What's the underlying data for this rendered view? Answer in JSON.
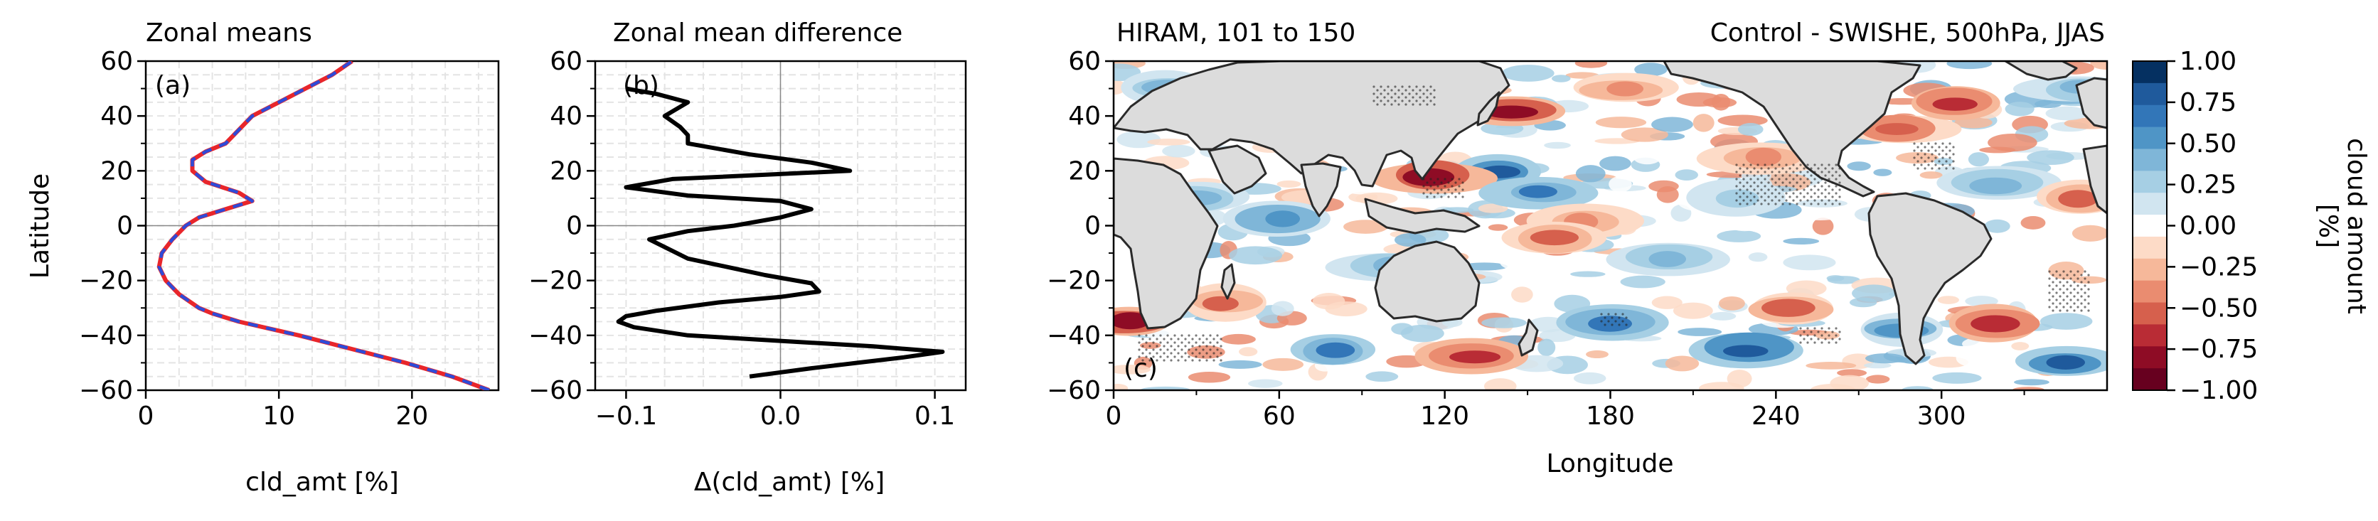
{
  "chart_data": [
    {
      "type": "line",
      "title": "Zonal means",
      "panel_label": "(a)",
      "xlabel": "cld_amt [%]",
      "ylabel": "Latitude",
      "xlim": [
        0,
        26.5
      ],
      "ylim": [
        -60,
        60
      ],
      "xticks": [
        0,
        10,
        20
      ],
      "xtick_labels": [
        "0",
        "10",
        "20"
      ],
      "yticks": [
        -60,
        -40,
        -20,
        0,
        20,
        40,
        60
      ],
      "ytick_labels": [
        "−60",
        "−40",
        "−20",
        "0",
        "20",
        "40",
        "60"
      ],
      "grid": true,
      "series": [
        {
          "color": "#e8262b",
          "dash": "solid",
          "y": [
            -60,
            -55,
            -50,
            -45,
            -40,
            -35,
            -32,
            -30,
            -25,
            -20,
            -15,
            -10,
            -5,
            0,
            3,
            6,
            9,
            12,
            16,
            20,
            24,
            27,
            30,
            35,
            40,
            45,
            50,
            55,
            60
          ],
          "x": [
            25.8,
            23.0,
            19.5,
            15.5,
            11.5,
            7.0,
            5.0,
            4.0,
            2.5,
            1.5,
            1.0,
            1.2,
            2.0,
            3.0,
            4.0,
            6.0,
            8.0,
            7.0,
            4.5,
            3.5,
            3.5,
            4.5,
            6.0,
            7.0,
            8.0,
            10.0,
            12.0,
            14.0,
            15.5
          ]
        },
        {
          "color": "#2e4bd8",
          "dash": "dashed",
          "y": [
            -60,
            -55,
            -50,
            -45,
            -40,
            -35,
            -32,
            -30,
            -25,
            -20,
            -15,
            -10,
            -5,
            0,
            3,
            6,
            9,
            12,
            16,
            20,
            24,
            27,
            30,
            35,
            40,
            45,
            50,
            55,
            60
          ],
          "x": [
            25.8,
            23.0,
            19.5,
            15.5,
            11.5,
            7.0,
            5.0,
            4.0,
            2.5,
            1.5,
            1.0,
            1.2,
            2.0,
            3.0,
            4.0,
            6.0,
            8.0,
            7.0,
            4.5,
            3.5,
            3.5,
            4.5,
            6.0,
            7.0,
            8.0,
            10.0,
            12.0,
            14.0,
            15.5
          ]
        }
      ]
    },
    {
      "type": "line",
      "title": "Zonal mean difference",
      "panel_label": "(b)",
      "xlabel": "Δ(cld_amt) [%]",
      "xlim": [
        -0.12,
        0.12
      ],
      "ylim": [
        -60,
        60
      ],
      "xticks": [
        -0.1,
        0,
        0.1
      ],
      "xtick_labels": [
        "−0.1",
        "0.0",
        "0.1"
      ],
      "yticks": [
        -60,
        -40,
        -20,
        0,
        20,
        40,
        60
      ],
      "ytick_labels": [
        "−60",
        "−40",
        "−20",
        "0",
        "20",
        "40",
        "60"
      ],
      "grid": true,
      "series": [
        {
          "color": "#000000",
          "dash": "solid",
          "y": [
            -55,
            -52,
            -50,
            -48,
            -46,
            -44,
            -42,
            -40,
            -37,
            -35,
            -33,
            -31,
            -28,
            -26,
            -24,
            -21,
            -18,
            -12,
            -5,
            -2,
            0,
            3,
            6,
            9,
            11,
            14,
            17,
            20,
            23,
            26,
            30,
            33,
            36,
            40,
            45,
            48,
            50
          ],
          "x": [
            -0.02,
            0.02,
            0.05,
            0.08,
            0.105,
            0.06,
            0.0,
            -0.06,
            -0.095,
            -0.105,
            -0.1,
            -0.08,
            -0.04,
            0.0,
            0.025,
            0.02,
            -0.01,
            -0.06,
            -0.085,
            -0.06,
            -0.03,
            0.0,
            0.02,
            0.0,
            -0.06,
            -0.1,
            -0.07,
            0.045,
            0.02,
            -0.02,
            -0.06,
            -0.06,
            -0.065,
            -0.075,
            -0.06,
            -0.08,
            -0.1
          ]
        }
      ]
    },
    {
      "type": "heatmap",
      "title": "HIRAM, 101 to 150",
      "subtitle": "Control - SWISHE, 500hPa, JJAS",
      "panel_label": "(c)",
      "xlabel": "Longitude",
      "xlim": [
        0,
        360
      ],
      "ylim": [
        -60,
        60
      ],
      "xticks": [
        0,
        60,
        120,
        180,
        240,
        300
      ],
      "xtick_labels": [
        "0",
        "60",
        "120",
        "180",
        "240",
        "300"
      ],
      "yticks": [
        -60,
        -40,
        -20,
        0,
        20,
        40,
        60
      ],
      "ytick_labels": [
        "−60",
        "−40",
        "−20",
        "0",
        "20",
        "40",
        "60"
      ],
      "colormap": "RdBu",
      "colorbar": {
        "label": "cloud amount\n[%]",
        "range": [
          -1.0,
          1.0
        ],
        "ticks": [
          1.0,
          0.75,
          0.5,
          0.25,
          0.0,
          -0.25,
          -0.5,
          -0.75,
          -1.0
        ],
        "tick_labels": [
          "1.00",
          "0.75",
          "0.50",
          "0.25",
          "0.00",
          "−0.25",
          "−0.50",
          "−0.75",
          "−1.00"
        ],
        "level_colors": [
          "#053061",
          "#1f5a9c",
          "#3276b8",
          "#4f95c6",
          "#7fb6d8",
          "#a6cfe4",
          "#d1e5f0",
          "#ffffff",
          "#fddbc7",
          "#f6b89a",
          "#ea8c70",
          "#d6604d",
          "#b92c35",
          "#8e0c25",
          "#67001f"
        ]
      },
      "field_patches": [
        {
          "lon": 140,
          "lat": 20,
          "value": 0.9
        },
        {
          "lon": 115,
          "lat": 18,
          "value": -0.9
        },
        {
          "lon": 155,
          "lat": 12,
          "value": 0.7
        },
        {
          "lon": 60,
          "lat": 2,
          "value": 0.6
        },
        {
          "lon": 30,
          "lat": 10,
          "value": 0.5
        },
        {
          "lon": 85,
          "lat": 35,
          "value": -0.7
        },
        {
          "lon": 145,
          "lat": 42,
          "value": -0.8
        },
        {
          "lon": 115,
          "lat": 45,
          "value": 0.5
        },
        {
          "lon": 285,
          "lat": 35,
          "value": -0.6
        },
        {
          "lon": 305,
          "lat": 45,
          "value": -0.7
        },
        {
          "lon": 235,
          "lat": 25,
          "value": -0.4
        },
        {
          "lon": 255,
          "lat": 45,
          "value": -0.3
        },
        {
          "lon": 5,
          "lat": -35,
          "value": -0.9
        },
        {
          "lon": 40,
          "lat": -28,
          "value": -0.5
        },
        {
          "lon": 80,
          "lat": -45,
          "value": 0.7
        },
        {
          "lon": 100,
          "lat": -15,
          "value": 0.5
        },
        {
          "lon": 130,
          "lat": -48,
          "value": -0.7
        },
        {
          "lon": 180,
          "lat": -35,
          "value": 0.7
        },
        {
          "lon": 230,
          "lat": -45,
          "value": 0.9
        },
        {
          "lon": 245,
          "lat": -30,
          "value": -0.5
        },
        {
          "lon": 285,
          "lat": -38,
          "value": 0.6
        },
        {
          "lon": 320,
          "lat": -35,
          "value": -0.7
        },
        {
          "lon": 345,
          "lat": -50,
          "value": 0.9
        },
        {
          "lon": 200,
          "lat": -12,
          "value": 0.4
        },
        {
          "lon": 170,
          "lat": 2,
          "value": -0.4
        },
        {
          "lon": 225,
          "lat": 10,
          "value": 0.3
        },
        {
          "lon": 320,
          "lat": 15,
          "value": 0.5
        },
        {
          "lon": 350,
          "lat": 10,
          "value": -0.5
        },
        {
          "lon": 350,
          "lat": 50,
          "value": 0.5
        },
        {
          "lon": 20,
          "lat": 50,
          "value": 0.4
        },
        {
          "lon": 185,
          "lat": 50,
          "value": -0.4
        },
        {
          "lon": 160,
          "lat": -5,
          "value": -0.5
        }
      ]
    }
  ]
}
